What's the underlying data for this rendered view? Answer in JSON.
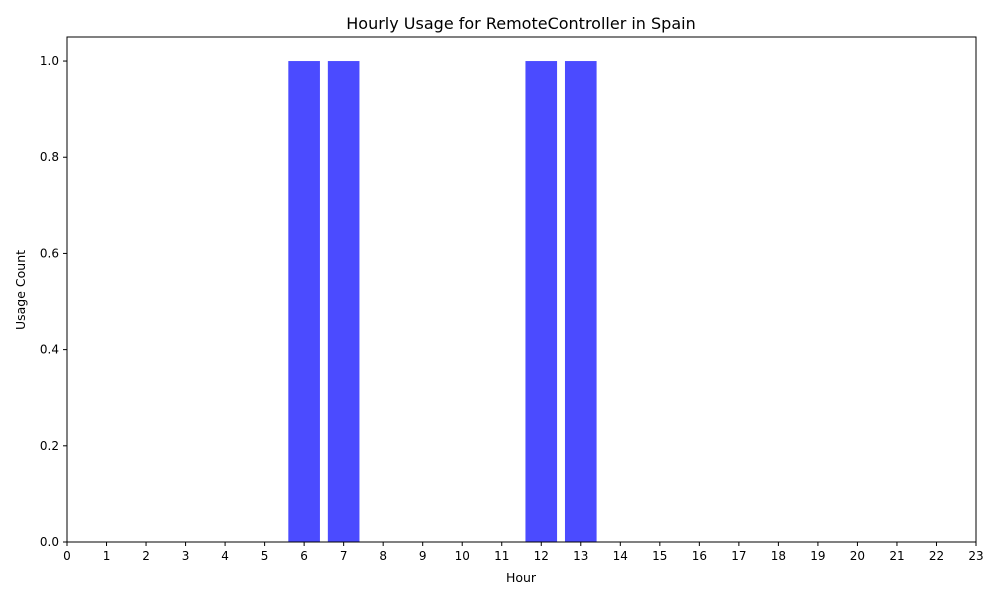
{
  "chart_data": {
    "type": "bar",
    "title": "Hourly Usage for RemoteController in Spain",
    "xlabel": "Hour",
    "ylabel": "Usage Count",
    "categories": [
      "0",
      "1",
      "2",
      "3",
      "4",
      "5",
      "6",
      "7",
      "8",
      "9",
      "10",
      "11",
      "12",
      "13",
      "14",
      "15",
      "16",
      "17",
      "18",
      "19",
      "20",
      "21",
      "22",
      "23"
    ],
    "values": [
      0,
      0,
      0,
      0,
      0,
      0,
      1,
      1,
      0,
      0,
      0,
      0,
      1,
      1,
      0,
      0,
      0,
      0,
      0,
      0,
      0,
      0,
      0,
      0
    ],
    "ylim": [
      0,
      1.05
    ],
    "xlim": [
      0,
      23
    ],
    "yticks": [
      "0.0",
      "0.2",
      "0.4",
      "0.6",
      "0.8",
      "1.0"
    ],
    "grid": false,
    "legend": "none",
    "bar_color": "#4b4bff"
  }
}
